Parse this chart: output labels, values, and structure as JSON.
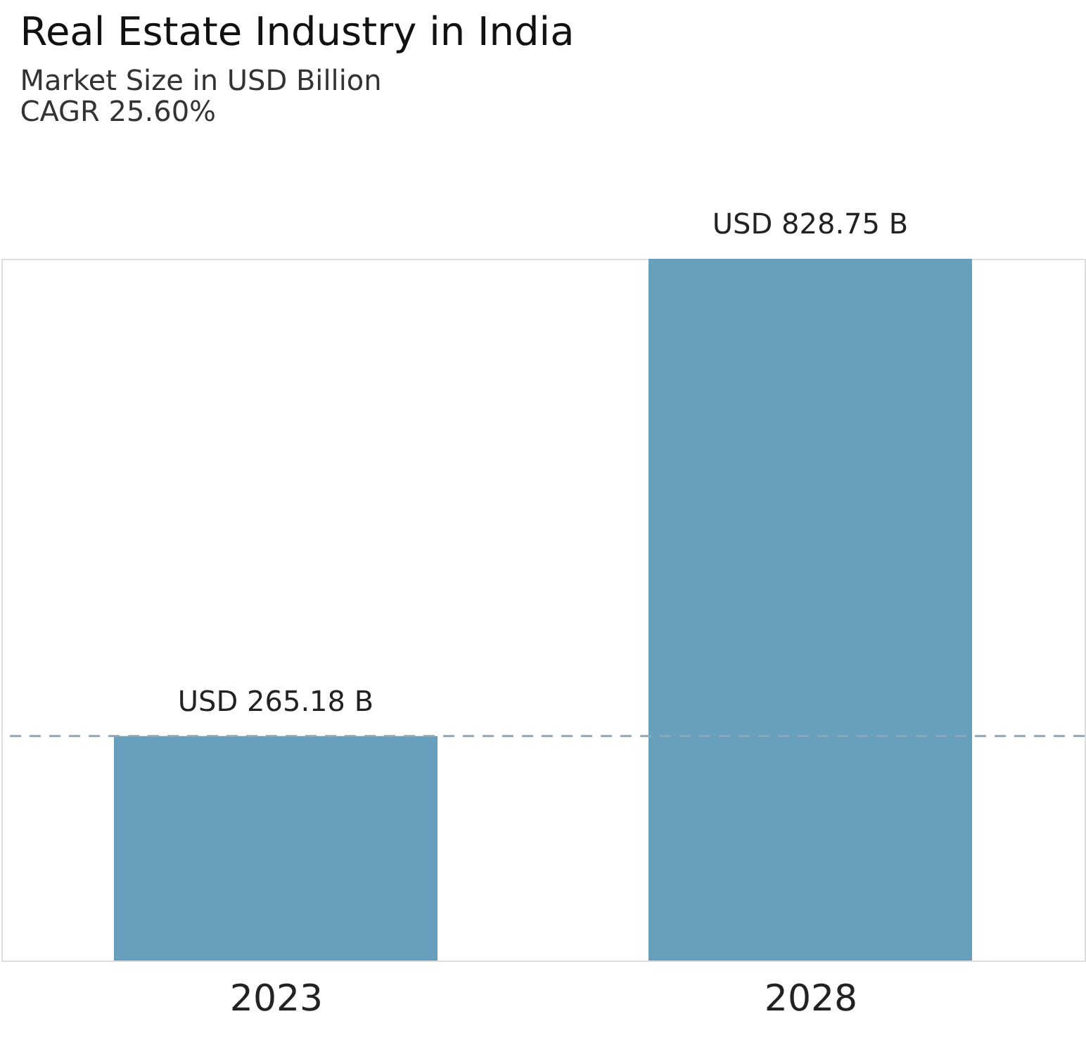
{
  "chart_data": {
    "type": "bar",
    "title": "Real Estate Industry in India",
    "subtitle": "Market Size in USD Billion",
    "annotations": [
      "CAGR 25.60%"
    ],
    "categories": [
      "2023",
      "2028"
    ],
    "values": [
      265.18,
      828.75
    ],
    "value_labels": [
      "USD 265.18 B",
      "USD 828.75 B"
    ],
    "color": "#679fbd",
    "ref_lines": [
      {
        "axis": "y",
        "value": 265.18,
        "color": "#8fa8b8",
        "line_style": "dashed"
      }
    ],
    "grid": false
  }
}
